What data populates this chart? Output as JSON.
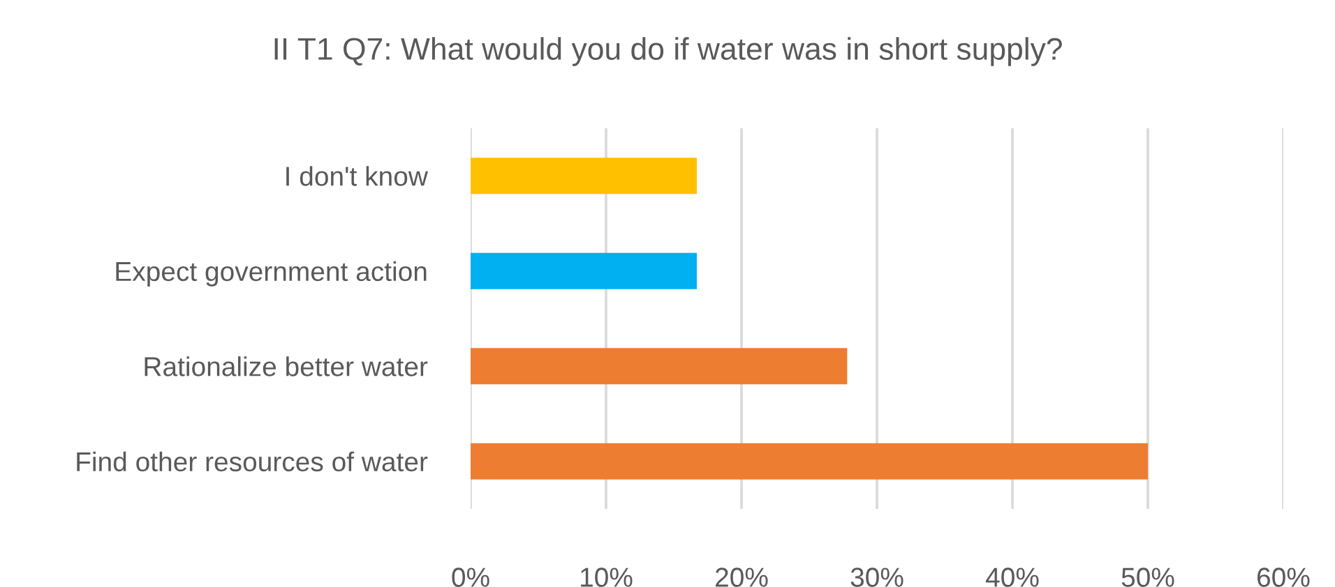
{
  "chart_data": {
    "type": "bar",
    "orientation": "horizontal",
    "title": "II T1 Q7: What would you do if water was in short supply?",
    "categories": [
      "I don't know",
      "Expect government action",
      "Rationalize better water",
      "Find other resources of water"
    ],
    "values": [
      16.7,
      16.7,
      27.8,
      50
    ],
    "colors": [
      "#ffc000",
      "#00b0f0",
      "#ed7d31",
      "#ed7d31"
    ],
    "xlim": [
      0,
      60
    ],
    "xticks": [
      {
        "value": 0,
        "label": "0%"
      },
      {
        "value": 10,
        "label": "10%"
      },
      {
        "value": 20,
        "label": "20%"
      },
      {
        "value": 30,
        "label": "30%"
      },
      {
        "value": 40,
        "label": "40%"
      },
      {
        "value": 50,
        "label": "50%"
      },
      {
        "value": 60,
        "label": "60%"
      }
    ],
    "grid": "x",
    "legend": false
  }
}
